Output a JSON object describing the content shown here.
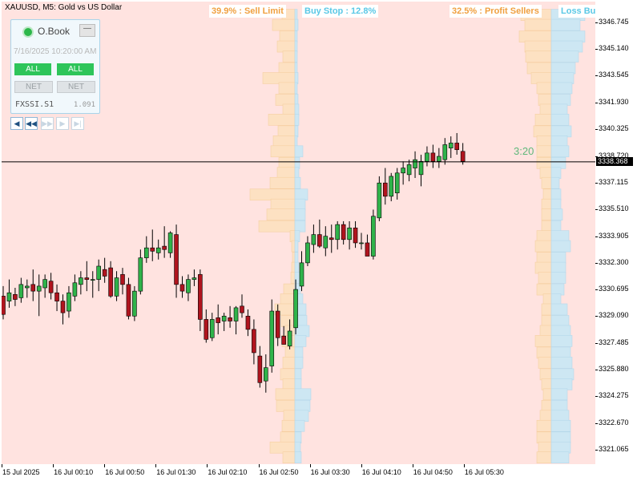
{
  "chart": {
    "symbol_title": "XAUUSD, M5:  Gold vs US Dollar",
    "current_price": "3338.368",
    "countdown": "3:20"
  },
  "overlay_pills": [
    {
      "text": "39.9% : Sell Limit",
      "color": "orange"
    },
    {
      "text": "Buy Stop : 12.8%",
      "color": "blue"
    },
    {
      "text": "32.5% : Profit Sellers",
      "color": "orange"
    },
    {
      "text": "Loss Bu",
      "color": "blue"
    }
  ],
  "panel": {
    "title": "O.Book",
    "minimize_label": "—",
    "date": "7/16/2025 10:20:00 AM",
    "all_left": "ALL",
    "all_right": "ALL",
    "net_left": "NET",
    "net_right": "NET",
    "symbol": "FXSSI.S1",
    "version": "1.091",
    "nav": [
      "◀",
      "◀◀",
      "▶▶",
      "▶",
      "▶|"
    ]
  },
  "price_axis": [
    "3346.745",
    "3345.140",
    "3343.545",
    "3341.930",
    "3340.325",
    "3338.720",
    "3337.115",
    "3335.510",
    "3333.905",
    "3332.300",
    "3330.695",
    "3329.090",
    "3327.485",
    "3325.880",
    "3324.275",
    "3322.670",
    "3321.065"
  ],
  "time_axis": [
    "15 Jul 2025",
    "16 Jul 00:10",
    "16 Jul 00:50",
    "16 Jul 01:30",
    "16 Jul 02:10",
    "16 Jul 02:50",
    "16 Jul 03:30",
    "16 Jul 04:10",
    "16 Jul 04:50",
    "16 Jul 05:30"
  ],
  "colors": {
    "background": "#ffe3e0",
    "bull": "#2fb34a",
    "bear": "#b0141e",
    "sell_orders": "#fde1c2",
    "buy_orders": "#cde7f3"
  },
  "chart_data": {
    "type": "candlestick",
    "ylim": [
      3320.2,
      3348.0
    ],
    "candles": [
      {
        "o": 3330.3,
        "h": 3330.9,
        "l": 3328.9,
        "c": 3329.2
      },
      {
        "o": 3330.0,
        "h": 3331.3,
        "l": 3329.6,
        "c": 3330.5
      },
      {
        "o": 3330.4,
        "h": 3330.8,
        "l": 3329.7,
        "c": 3330.1
      },
      {
        "o": 3330.2,
        "h": 3331.4,
        "l": 3329.9,
        "c": 3331.0
      },
      {
        "o": 3330.8,
        "h": 3331.3,
        "l": 3330.2,
        "c": 3330.9
      },
      {
        "o": 3331.0,
        "h": 3331.9,
        "l": 3330.0,
        "c": 3330.6
      },
      {
        "o": 3330.6,
        "h": 3331.6,
        "l": 3329.1,
        "c": 3330.9
      },
      {
        "o": 3330.8,
        "h": 3331.6,
        "l": 3330.2,
        "c": 3331.3
      },
      {
        "o": 3331.2,
        "h": 3331.7,
        "l": 3330.1,
        "c": 3330.5
      },
      {
        "o": 3330.5,
        "h": 3331.0,
        "l": 3329.4,
        "c": 3330.0
      },
      {
        "o": 3330.0,
        "h": 3330.4,
        "l": 3328.6,
        "c": 3329.3
      },
      {
        "o": 3329.4,
        "h": 3330.9,
        "l": 3329.0,
        "c": 3330.5
      },
      {
        "o": 3330.3,
        "h": 3331.6,
        "l": 3330.0,
        "c": 3331.1
      },
      {
        "o": 3331.0,
        "h": 3331.8,
        "l": 3330.4,
        "c": 3331.4
      },
      {
        "o": 3331.4,
        "h": 3332.4,
        "l": 3330.6,
        "c": 3331.3
      },
      {
        "o": 3331.3,
        "h": 3331.8,
        "l": 3330.2,
        "c": 3331.3
      },
      {
        "o": 3331.3,
        "h": 3332.5,
        "l": 3330.6,
        "c": 3332.1
      },
      {
        "o": 3331.9,
        "h": 3332.6,
        "l": 3331.1,
        "c": 3331.5
      },
      {
        "o": 3332.0,
        "h": 3332.4,
        "l": 3330.2,
        "c": 3330.3
      },
      {
        "o": 3330.3,
        "h": 3331.8,
        "l": 3330.0,
        "c": 3331.4
      },
      {
        "o": 3331.6,
        "h": 3332.0,
        "l": 3330.4,
        "c": 3331.0
      },
      {
        "o": 3331.0,
        "h": 3331.4,
        "l": 3328.9,
        "c": 3329.1
      },
      {
        "o": 3329.1,
        "h": 3330.9,
        "l": 3328.8,
        "c": 3330.6
      },
      {
        "o": 3330.6,
        "h": 3333.1,
        "l": 3330.4,
        "c": 3332.6
      },
      {
        "o": 3332.6,
        "h": 3333.9,
        "l": 3332.3,
        "c": 3333.2
      },
      {
        "o": 3333.2,
        "h": 3334.3,
        "l": 3332.4,
        "c": 3333.0
      },
      {
        "o": 3332.9,
        "h": 3333.7,
        "l": 3332.5,
        "c": 3333.2
      },
      {
        "o": 3333.3,
        "h": 3334.5,
        "l": 3332.6,
        "c": 3333.1
      },
      {
        "o": 3332.9,
        "h": 3334.2,
        "l": 3332.6,
        "c": 3334.1
      },
      {
        "o": 3334.0,
        "h": 3334.6,
        "l": 3330.2,
        "c": 3331.0
      },
      {
        "o": 3331.0,
        "h": 3331.5,
        "l": 3330.2,
        "c": 3330.6
      },
      {
        "o": 3330.5,
        "h": 3331.6,
        "l": 3330.0,
        "c": 3331.3
      },
      {
        "o": 3331.3,
        "h": 3331.9,
        "l": 3330.9,
        "c": 3331.4
      },
      {
        "o": 3331.6,
        "h": 3331.9,
        "l": 3328.2,
        "c": 3328.9
      },
      {
        "o": 3328.9,
        "h": 3329.5,
        "l": 3327.5,
        "c": 3327.7
      },
      {
        "o": 3327.8,
        "h": 3329.3,
        "l": 3327.6,
        "c": 3328.9
      },
      {
        "o": 3329.0,
        "h": 3329.8,
        "l": 3328.0,
        "c": 3328.7
      },
      {
        "o": 3328.8,
        "h": 3329.3,
        "l": 3328.2,
        "c": 3329.1
      },
      {
        "o": 3329.0,
        "h": 3329.7,
        "l": 3328.4,
        "c": 3328.8
      },
      {
        "o": 3328.8,
        "h": 3329.7,
        "l": 3328.0,
        "c": 3329.6
      },
      {
        "o": 3329.7,
        "h": 3330.4,
        "l": 3329.0,
        "c": 3329.3
      },
      {
        "o": 3329.1,
        "h": 3329.5,
        "l": 3327.9,
        "c": 3328.3
      },
      {
        "o": 3328.3,
        "h": 3328.9,
        "l": 3326.2,
        "c": 3326.9
      },
      {
        "o": 3326.7,
        "h": 3327.3,
        "l": 3324.8,
        "c": 3325.1
      },
      {
        "o": 3325.2,
        "h": 3326.8,
        "l": 3324.5,
        "c": 3326.0
      },
      {
        "o": 3326.1,
        "h": 3330.1,
        "l": 3325.7,
        "c": 3329.4
      },
      {
        "o": 3329.4,
        "h": 3329.8,
        "l": 3327.3,
        "c": 3327.8
      },
      {
        "o": 3327.9,
        "h": 3328.5,
        "l": 3327.4,
        "c": 3327.4
      },
      {
        "o": 3327.3,
        "h": 3328.9,
        "l": 3327.1,
        "c": 3328.2
      },
      {
        "o": 3328.4,
        "h": 3331.3,
        "l": 3328.0,
        "c": 3330.7
      },
      {
        "o": 3330.9,
        "h": 3333.0,
        "l": 3330.6,
        "c": 3332.3
      },
      {
        "o": 3332.3,
        "h": 3333.9,
        "l": 3332.1,
        "c": 3333.5
      },
      {
        "o": 3333.4,
        "h": 3334.6,
        "l": 3332.9,
        "c": 3334.0
      },
      {
        "o": 3334.0,
        "h": 3334.9,
        "l": 3333.2,
        "c": 3333.3
      },
      {
        "o": 3333.2,
        "h": 3334.5,
        "l": 3332.7,
        "c": 3333.9
      },
      {
        "o": 3333.8,
        "h": 3334.6,
        "l": 3332.9,
        "c": 3333.7
      },
      {
        "o": 3333.7,
        "h": 3334.8,
        "l": 3333.1,
        "c": 3334.6
      },
      {
        "o": 3334.6,
        "h": 3334.8,
        "l": 3333.4,
        "c": 3333.7
      },
      {
        "o": 3333.7,
        "h": 3334.8,
        "l": 3333.1,
        "c": 3334.4
      },
      {
        "o": 3334.4,
        "h": 3334.8,
        "l": 3333.2,
        "c": 3333.5
      },
      {
        "o": 3333.5,
        "h": 3334.1,
        "l": 3333.1,
        "c": 3333.5
      },
      {
        "o": 3333.5,
        "h": 3334.0,
        "l": 3332.8,
        "c": 3332.7
      },
      {
        "o": 3332.7,
        "h": 3335.5,
        "l": 3332.5,
        "c": 3335.1
      },
      {
        "o": 3335.0,
        "h": 3337.5,
        "l": 3334.8,
        "c": 3337.1
      },
      {
        "o": 3337.1,
        "h": 3338.0,
        "l": 3335.8,
        "c": 3336.3
      },
      {
        "o": 3336.3,
        "h": 3337.7,
        "l": 3336.0,
        "c": 3337.5
      },
      {
        "o": 3336.5,
        "h": 3338.0,
        "l": 3336.1,
        "c": 3337.7
      },
      {
        "o": 3337.7,
        "h": 3338.4,
        "l": 3337.0,
        "c": 3338.0
      },
      {
        "o": 3337.6,
        "h": 3338.5,
        "l": 3337.2,
        "c": 3338.2
      },
      {
        "o": 3338.0,
        "h": 3339.0,
        "l": 3337.4,
        "c": 3338.5
      },
      {
        "o": 3337.6,
        "h": 3338.8,
        "l": 3336.9,
        "c": 3338.4
      },
      {
        "o": 3338.4,
        "h": 3339.3,
        "l": 3338.1,
        "c": 3338.9
      },
      {
        "o": 3338.9,
        "h": 3339.4,
        "l": 3338.0,
        "c": 3338.4
      },
      {
        "o": 3338.4,
        "h": 3339.2,
        "l": 3338.0,
        "c": 3338.7
      },
      {
        "o": 3338.5,
        "h": 3339.8,
        "l": 3338.2,
        "c": 3339.4
      },
      {
        "o": 3339.2,
        "h": 3339.9,
        "l": 3338.6,
        "c": 3339.5
      },
      {
        "o": 3339.5,
        "h": 3340.1,
        "l": 3338.8,
        "c": 3339.1
      },
      {
        "o": 3339.0,
        "h": 3339.5,
        "l": 3338.2,
        "c": 3338.4
      }
    ],
    "order_book_left": [
      {
        "price": 3347.2,
        "sell": 16,
        "buy": 3
      },
      {
        "price": 3346.6,
        "sell": 28,
        "buy": 4
      },
      {
        "price": 3345.9,
        "sell": 19,
        "buy": 3
      },
      {
        "price": 3345.3,
        "sell": 22,
        "buy": 3
      },
      {
        "price": 3344.7,
        "sell": 15,
        "buy": 3
      },
      {
        "price": 3344.0,
        "sell": 20,
        "buy": 3
      },
      {
        "price": 3343.4,
        "sell": 40,
        "buy": 4
      },
      {
        "price": 3342.8,
        "sell": 20,
        "buy": 3
      },
      {
        "price": 3342.1,
        "sell": 24,
        "buy": 4
      },
      {
        "price": 3341.5,
        "sell": 15,
        "buy": 5
      },
      {
        "price": 3340.9,
        "sell": 33,
        "buy": 5
      },
      {
        "price": 3340.2,
        "sell": 21,
        "buy": 4
      },
      {
        "price": 3339.6,
        "sell": 27,
        "buy": 3
      },
      {
        "price": 3339.0,
        "sell": 30,
        "buy": 10
      },
      {
        "price": 3338.3,
        "sell": 20,
        "buy": 6
      },
      {
        "price": 3337.7,
        "sell": 22,
        "buy": 5
      },
      {
        "price": 3337.1,
        "sell": 31,
        "buy": 7
      },
      {
        "price": 3336.4,
        "sell": 56,
        "buy": 16
      },
      {
        "price": 3335.8,
        "sell": 30,
        "buy": 13
      },
      {
        "price": 3335.2,
        "sell": 35,
        "buy": 13
      },
      {
        "price": 3334.5,
        "sell": 45,
        "buy": 13
      },
      {
        "price": 3333.9,
        "sell": 6,
        "buy": 6
      },
      {
        "price": 3333.3,
        "sell": 4,
        "buy": 4
      },
      {
        "price": 3332.6,
        "sell": 3,
        "buy": 4
      },
      {
        "price": 3332.0,
        "sell": 4,
        "buy": 5
      },
      {
        "price": 3331.4,
        "sell": 5,
        "buy": 6
      },
      {
        "price": 3330.7,
        "sell": 14,
        "buy": 7
      },
      {
        "price": 3330.1,
        "sell": 18,
        "buy": 10
      },
      {
        "price": 3329.5,
        "sell": 25,
        "buy": 14
      },
      {
        "price": 3328.8,
        "sell": 17,
        "buy": 15
      },
      {
        "price": 3328.2,
        "sell": 12,
        "buy": 18
      },
      {
        "price": 3327.6,
        "sell": 16,
        "buy": 14
      },
      {
        "price": 3326.9,
        "sell": 12,
        "buy": 10
      },
      {
        "price": 3326.3,
        "sell": 15,
        "buy": 10
      },
      {
        "price": 3325.6,
        "sell": 18,
        "buy": 8
      },
      {
        "price": 3325.0,
        "sell": 15,
        "buy": 8
      },
      {
        "price": 3324.4,
        "sell": 24,
        "buy": 20
      },
      {
        "price": 3323.7,
        "sell": 23,
        "buy": 19
      },
      {
        "price": 3323.1,
        "sell": 14,
        "buy": 17
      },
      {
        "price": 3322.5,
        "sell": 16,
        "buy": 12
      },
      {
        "price": 3321.8,
        "sell": 18,
        "buy": 8
      },
      {
        "price": 3321.2,
        "sell": 31,
        "buy": 7
      },
      {
        "price": 3320.6,
        "sell": 15,
        "buy": 8
      }
    ],
    "order_book_right": [
      {
        "price": 3347.2,
        "sell": 38,
        "buy": 42
      },
      {
        "price": 3346.6,
        "sell": 33,
        "buy": 36
      },
      {
        "price": 3345.9,
        "sell": 40,
        "buy": 42
      },
      {
        "price": 3345.3,
        "sell": 33,
        "buy": 39
      },
      {
        "price": 3344.7,
        "sell": 32,
        "buy": 34
      },
      {
        "price": 3344.0,
        "sell": 30,
        "buy": 30
      },
      {
        "price": 3343.4,
        "sell": 25,
        "buy": 28
      },
      {
        "price": 3342.8,
        "sell": 18,
        "buy": 26
      },
      {
        "price": 3342.1,
        "sell": 16,
        "buy": 24
      },
      {
        "price": 3341.5,
        "sell": 14,
        "buy": 20
      },
      {
        "price": 3340.9,
        "sell": 20,
        "buy": 22
      },
      {
        "price": 3340.2,
        "sell": 22,
        "buy": 25
      },
      {
        "price": 3339.6,
        "sell": 18,
        "buy": 20
      },
      {
        "price": 3339.0,
        "sell": 18,
        "buy": 22
      },
      {
        "price": 3338.3,
        "sell": 18,
        "buy": 18
      },
      {
        "price": 3337.7,
        "sell": 14,
        "buy": 12
      },
      {
        "price": 3337.1,
        "sell": 12,
        "buy": 10
      },
      {
        "price": 3336.4,
        "sell": 10,
        "buy": 12
      },
      {
        "price": 3335.8,
        "sell": 12,
        "buy": 12
      },
      {
        "price": 3335.2,
        "sell": 12,
        "buy": 14
      },
      {
        "price": 3334.5,
        "sell": 12,
        "buy": 12
      },
      {
        "price": 3333.9,
        "sell": 18,
        "buy": 22
      },
      {
        "price": 3333.3,
        "sell": 20,
        "buy": 24
      },
      {
        "price": 3332.6,
        "sell": 18,
        "buy": 18
      },
      {
        "price": 3332.0,
        "sell": 20,
        "buy": 18
      },
      {
        "price": 3331.4,
        "sell": 16,
        "buy": 18
      },
      {
        "price": 3330.7,
        "sell": 18,
        "buy": 16
      },
      {
        "price": 3330.1,
        "sell": 10,
        "buy": 12
      },
      {
        "price": 3329.5,
        "sell": 12,
        "buy": 20
      },
      {
        "price": 3328.8,
        "sell": 12,
        "buy": 22
      },
      {
        "price": 3328.2,
        "sell": 14,
        "buy": 24
      },
      {
        "price": 3327.6,
        "sell": 20,
        "buy": 26
      },
      {
        "price": 3326.9,
        "sell": 18,
        "buy": 24
      },
      {
        "price": 3326.3,
        "sell": 16,
        "buy": 26
      },
      {
        "price": 3325.6,
        "sell": 14,
        "buy": 28
      },
      {
        "price": 3325.0,
        "sell": 12,
        "buy": 26
      },
      {
        "price": 3324.4,
        "sell": 10,
        "buy": 20
      },
      {
        "price": 3323.7,
        "sell": 12,
        "buy": 20
      },
      {
        "price": 3323.1,
        "sell": 14,
        "buy": 22
      },
      {
        "price": 3322.5,
        "sell": 18,
        "buy": 24
      },
      {
        "price": 3321.8,
        "sell": 18,
        "buy": 24
      },
      {
        "price": 3321.2,
        "sell": 16,
        "buy": 24
      },
      {
        "price": 3320.6,
        "sell": 18,
        "buy": 22
      }
    ]
  }
}
